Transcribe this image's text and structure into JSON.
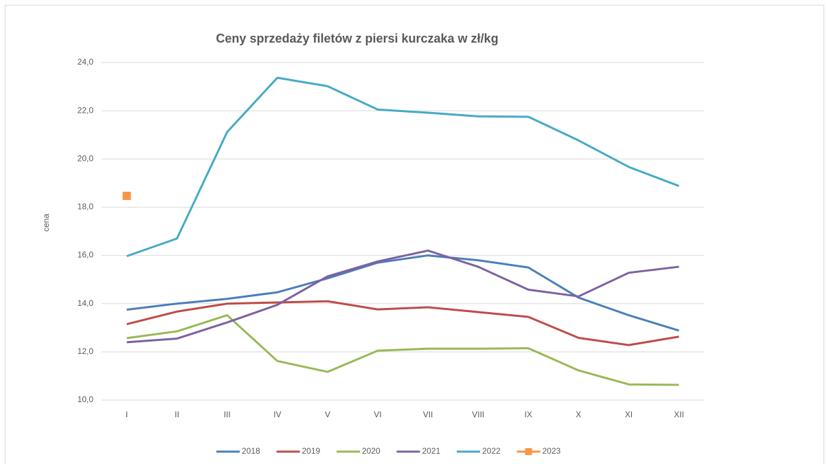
{
  "chart_data": {
    "type": "line",
    "title": "Ceny sprzedaży filetów z piersi kurczaka w zł/kg",
    "y_label": "cena",
    "categories": [
      "I",
      "II",
      "III",
      "IV",
      "V",
      "VI",
      "VII",
      "VIII",
      "IX",
      "X",
      "XI",
      "XII"
    ],
    "series": [
      {
        "name": "2018",
        "color": "#4a7ebb",
        "values": [
          13.75,
          14.0,
          14.2,
          14.47,
          15.05,
          15.7,
          16.0,
          15.8,
          15.5,
          14.25,
          13.52,
          12.88
        ]
      },
      {
        "name": "2019",
        "color": "#be4b48",
        "values": [
          13.15,
          13.67,
          14.0,
          14.05,
          14.1,
          13.76,
          13.85,
          13.65,
          13.45,
          12.58,
          12.28,
          12.63
        ]
      },
      {
        "name": "2020",
        "color": "#98b954",
        "values": [
          12.57,
          12.85,
          13.52,
          11.62,
          11.17,
          12.05,
          12.13,
          12.13,
          12.15,
          11.23,
          10.65,
          10.63
        ]
      },
      {
        "name": "2021",
        "color": "#7d60a0",
        "values": [
          12.4,
          12.55,
          13.22,
          13.95,
          15.13,
          15.75,
          16.2,
          15.53,
          14.58,
          14.3,
          15.28,
          15.53
        ]
      },
      {
        "name": "2022",
        "color": "#46aac5",
        "values": [
          15.97,
          16.7,
          21.12,
          23.37,
          23.02,
          22.05,
          21.92,
          21.77,
          21.75,
          20.77,
          19.67,
          18.88
        ]
      },
      {
        "name": "2023",
        "color": "#f79646",
        "marker": "square",
        "values": [
          18.47,
          null,
          null,
          null,
          null,
          null,
          null,
          null,
          null,
          null,
          null,
          null
        ]
      }
    ],
    "ylim": [
      10,
      24
    ],
    "yticks": [
      {
        "value": 10,
        "label": "10,0"
      },
      {
        "value": 12,
        "label": "12,0"
      },
      {
        "value": 14,
        "label": "14,0"
      },
      {
        "value": 16,
        "label": "16,0"
      },
      {
        "value": 18,
        "label": "18,0"
      },
      {
        "value": 20,
        "label": "20,0"
      },
      {
        "value": 22,
        "label": "22,0"
      },
      {
        "value": 24,
        "label": "24,0"
      }
    ],
    "grid": true,
    "legend": "bottom"
  }
}
